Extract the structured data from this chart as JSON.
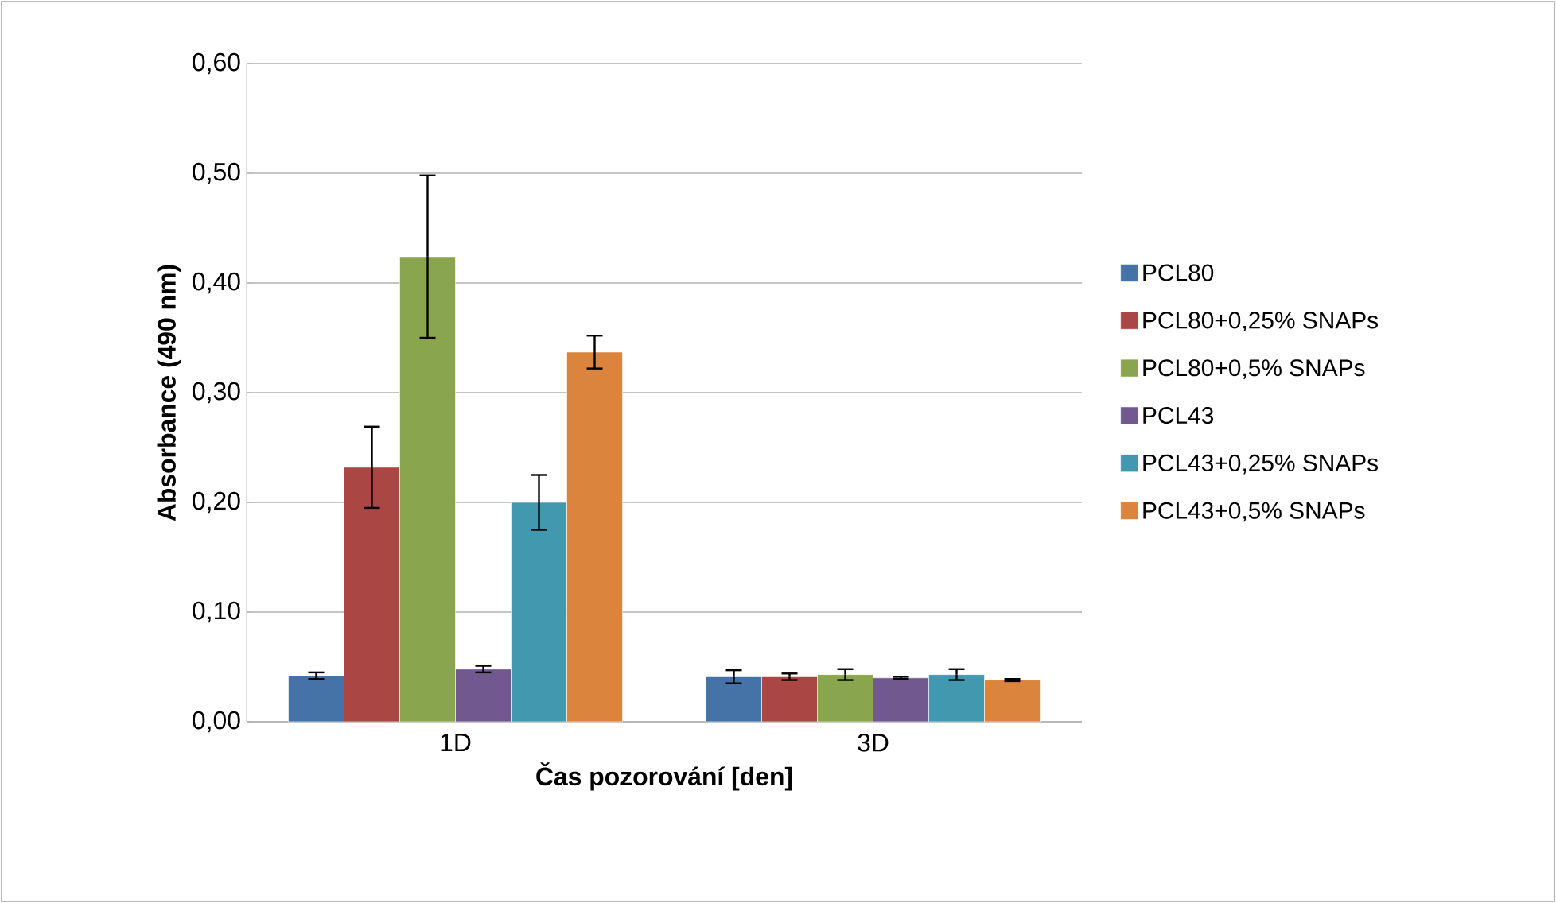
{
  "chart_data": {
    "type": "bar",
    "xlabel": "Čas pozorování [den]",
    "ylabel": "Absorbance (490 nm)",
    "categories": [
      "1D",
      "3D"
    ],
    "series": [
      {
        "name": "PCL80",
        "color": "#4572a7",
        "values": [
          0.042,
          0.041
        ],
        "errors": [
          0.003,
          0.006
        ]
      },
      {
        "name": "PCL80+0,25% SNAPs",
        "color": "#aa4643",
        "values": [
          0.232,
          0.041
        ],
        "errors": [
          0.037,
          0.003
        ]
      },
      {
        "name": "PCL80+0,5% SNAPs",
        "color": "#89a54e",
        "values": [
          0.424,
          0.043
        ],
        "errors": [
          0.074,
          0.005
        ]
      },
      {
        "name": "PCL43",
        "color": "#71588f",
        "values": [
          0.048,
          0.04
        ],
        "errors": [
          0.003,
          0.001
        ]
      },
      {
        "name": "PCL43+0,25% SNAPs",
        "color": "#4198af",
        "values": [
          0.2,
          0.043
        ],
        "errors": [
          0.025,
          0.005
        ]
      },
      {
        "name": "PCL43+0,5% SNAPs",
        "color": "#db843d",
        "values": [
          0.337,
          0.038
        ],
        "errors": [
          0.015,
          0.001
        ]
      }
    ],
    "ylim": [
      0,
      0.6
    ],
    "yticks": [
      {
        "value": 0,
        "label": "0,00"
      },
      {
        "value": 0.1,
        "label": "0,10"
      },
      {
        "value": 0.2,
        "label": "0,20"
      },
      {
        "value": 0.3,
        "label": "0,30"
      },
      {
        "value": 0.4,
        "label": "0,40"
      },
      {
        "value": 0.5,
        "label": "0,50"
      },
      {
        "value": 0.6,
        "label": "0,60"
      }
    ],
    "grid": "y",
    "legend": "right"
  }
}
